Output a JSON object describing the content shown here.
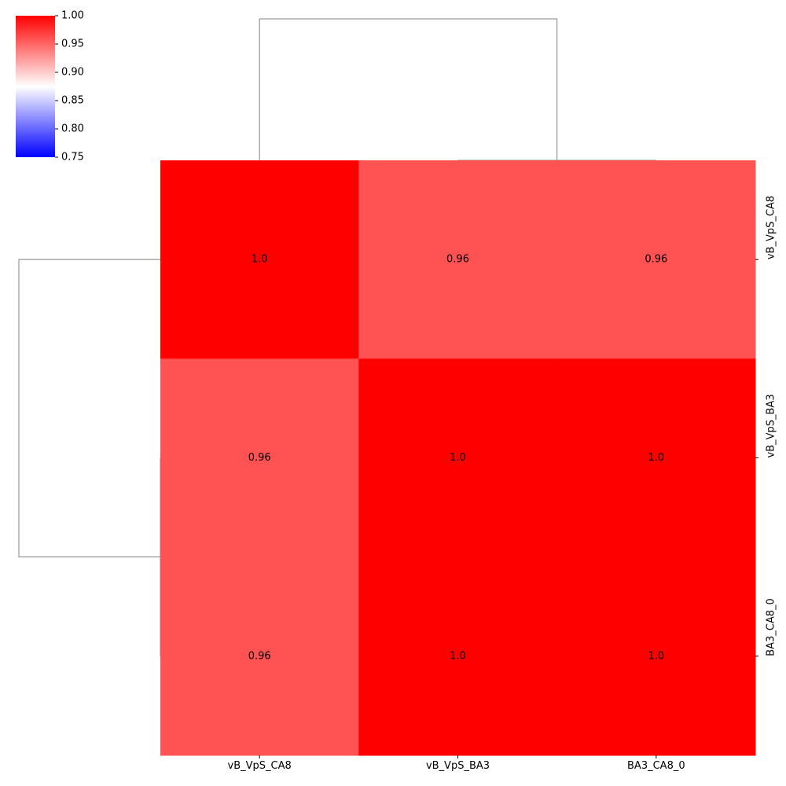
{
  "chart_data": {
    "type": "heatmap",
    "title": "",
    "xlabel": "",
    "ylabel": "",
    "columns": [
      "vB_VpS_CA8",
      "vB_VpS_BA3",
      "BA3_CA8_0"
    ],
    "rows": [
      "vB_VpS_CA8",
      "vB_VpS_BA3",
      "BA3_CA8_0"
    ],
    "values": [
      [
        1.0,
        0.96,
        0.96
      ],
      [
        0.96,
        1.0,
        1.0
      ],
      [
        0.96,
        1.0,
        1.0
      ]
    ],
    "cell_labels": [
      [
        "1.0",
        "0.96",
        "0.96"
      ],
      [
        "0.96",
        "1.0",
        "1.0"
      ],
      [
        "0.96",
        "1.0",
        "1.0"
      ]
    ],
    "colorbar": {
      "vmin": 0.75,
      "vmax": 1.0,
      "ticks": [
        0.75,
        0.8,
        0.85,
        0.9,
        0.95,
        1.0
      ],
      "tick_labels": [
        "0.75",
        "0.80",
        "0.85",
        "0.90",
        "0.95",
        "1.00"
      ],
      "colormap": "bwr",
      "color_low": "#0000ff",
      "color_mid": "#ffffff",
      "color_high": "#ff0000"
    },
    "row_dendrogram": {
      "merges": [
        {
          "left_leaf": 1,
          "right_leaf": 2,
          "height": 0.0
        },
        {
          "left_leaf": 0,
          "right_cluster": [
            1,
            2
          ],
          "height": 1.0
        }
      ]
    },
    "col_dendrogram": {
      "merges": [
        {
          "left_leaf": 1,
          "right_leaf": 2,
          "height": 0.0
        },
        {
          "left_leaf": 0,
          "right_cluster": [
            1,
            2
          ],
          "height": 1.0
        }
      ]
    },
    "dendrogram_line_color": "#808080",
    "grid": false
  }
}
